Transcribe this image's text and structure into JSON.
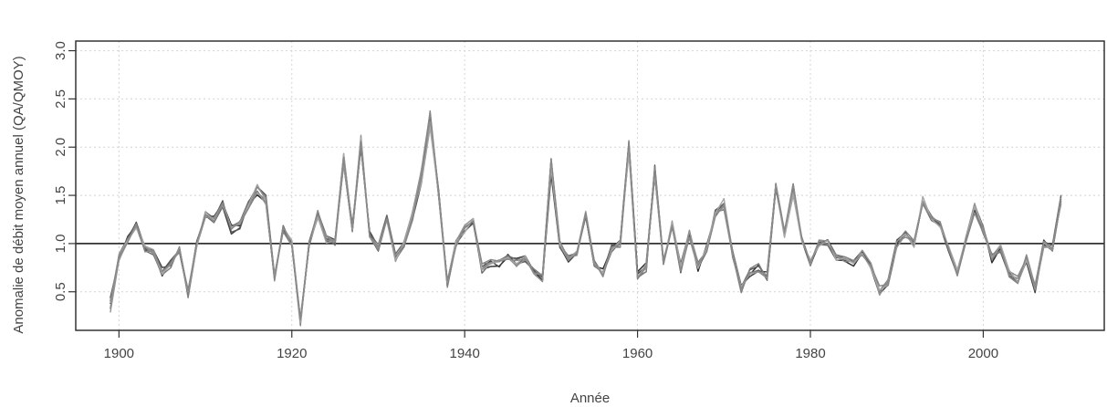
{
  "chart_data": {
    "type": "line",
    "title": "",
    "xlabel": "Année",
    "ylabel": "Anomalie de débit moyen annuel (QA/QMOY)",
    "xlim": [
      1895,
      2014
    ],
    "ylim": [
      0.1,
      3.1
    ],
    "x_ticks": [
      1900,
      1920,
      1940,
      1960,
      1980,
      2000
    ],
    "y_ticks": [
      0.5,
      1.0,
      1.5,
      2.0,
      2.5,
      3.0
    ],
    "y_tick_labels": [
      "0.5",
      "1.0",
      "1.5",
      "2.0",
      "2.5",
      "3.0"
    ],
    "reference_line": 1.0,
    "grid": true,
    "legend": "none",
    "line_colors": [
      "#2a2a2a",
      "#404040",
      "#555555",
      "#6a6a6a",
      "#7f7f7f",
      "#939393",
      "#a6a6a6",
      "#888888"
    ],
    "base_series": {
      "x_start": 1899,
      "values": [
        0.35,
        0.85,
        1.05,
        1.2,
        0.95,
        0.9,
        0.7,
        0.8,
        0.95,
        0.5,
        1.0,
        1.3,
        1.25,
        1.4,
        1.15,
        1.2,
        1.4,
        1.55,
        1.45,
        0.65,
        1.15,
        1.0,
        0.2,
        1.0,
        1.3,
        1.05,
        1.0,
        1.85,
        1.15,
        2.05,
        1.1,
        0.95,
        1.25,
        0.85,
        1.0,
        1.3,
        1.7,
        2.3,
        1.5,
        0.6,
        1.0,
        1.15,
        1.25,
        0.75,
        0.8,
        0.8,
        0.85,
        0.8,
        0.85,
        0.7,
        0.65,
        1.8,
        1.0,
        0.85,
        0.9,
        1.3,
        0.8,
        0.7,
        0.95,
        1.0,
        2.0,
        0.65,
        0.75,
        1.75,
        0.8,
        1.2,
        0.75,
        1.1,
        0.75,
        0.95,
        1.3,
        1.4,
        0.9,
        0.55,
        0.7,
        0.75,
        0.65,
        1.6,
        1.1,
        1.55,
        1.05,
        0.8,
        1.0,
        1.0,
        0.85,
        0.85,
        0.8,
        0.9,
        0.75,
        0.5,
        0.6,
        1.0,
        1.1,
        1.0,
        1.45,
        1.25,
        1.2,
        0.95,
        0.7,
        1.05,
        1.35,
        1.15,
        0.85,
        0.95,
        0.7,
        0.6,
        0.85,
        0.55,
        1.0,
        0.95,
        1.45
      ]
    }
  }
}
